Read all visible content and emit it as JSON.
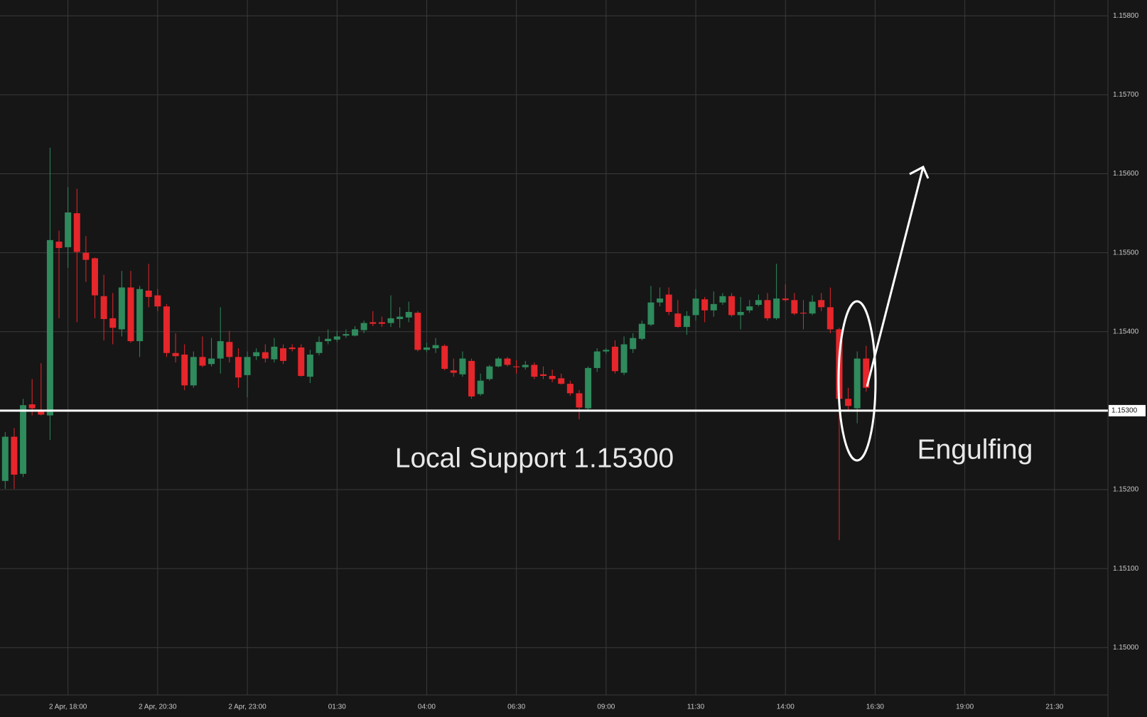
{
  "chart_data": {
    "type": "candlestick",
    "annotations": [
      "Local Support 1.15300",
      "Engulfing"
    ],
    "categories": [
      null,
      null,
      null,
      null,
      null,
      null,
      null,
      "2 Apr, 18:00",
      null,
      null,
      null,
      null,
      null,
      null,
      null,
      null,
      null,
      "2 Apr, 20:30",
      null,
      null,
      null,
      null,
      null,
      null,
      null,
      null,
      null,
      "2 Apr, 23:00",
      null,
      null,
      null,
      null,
      null,
      null,
      null,
      null,
      null,
      "01:30",
      null,
      null,
      null,
      null,
      null,
      null,
      null,
      null,
      null,
      "04:00",
      null,
      null,
      null,
      null,
      null,
      null,
      null,
      null,
      null,
      "06:30",
      null,
      null,
      null,
      null,
      null,
      null,
      null,
      null,
      null,
      "09:00",
      null,
      null,
      null,
      null,
      null,
      null,
      null,
      null,
      null,
      "11:30",
      null,
      null,
      null,
      null,
      null,
      null,
      null,
      null,
      null,
      "14:00",
      null,
      null,
      null,
      null,
      null,
      null,
      null,
      null,
      null,
      "16:30",
      null,
      null,
      null,
      null,
      null,
      null,
      null,
      null,
      null,
      "19:00",
      null,
      null,
      null,
      null,
      null,
      null,
      null,
      null,
      null,
      "21:30",
      null,
      null,
      null,
      null,
      null
    ],
    "open": [
      1.15211,
      1.15267,
      1.1522,
      1.15308,
      1.15301,
      1.15294,
      1.15514,
      1.15507,
      1.1555,
      1.155,
      1.15493,
      1.15445,
      1.15417,
      1.15403,
      1.15456,
      1.15388,
      1.15452,
      1.15446,
      1.15432,
      1.15373,
      1.15371,
      1.15332,
      1.15368,
      1.15359,
      1.15366,
      1.15387,
      1.15368,
      1.15345,
      1.15369,
      1.15374,
      1.15365,
      1.15379,
      1.1538,
      1.1538,
      1.15343,
      1.15373,
      1.15388,
      1.1539,
      1.15395,
      1.15395,
      1.15402,
      1.15412,
      1.15412,
      1.15411,
      1.15416,
      1.15418,
      1.15424,
      1.15377,
      1.15379,
      1.15382,
      1.15351,
      1.15346,
      1.15363,
      1.15321,
      1.1534,
      1.15356,
      1.15366,
      1.15356,
      1.15355,
      1.15358,
      1.15346,
      1.15344,
      1.15341,
      1.15334,
      1.15322,
      1.15303,
      1.15354,
      1.15375,
      1.15381,
      1.15348,
      1.15378,
      1.15391,
      1.15409,
      1.15437,
      1.15447,
      1.15423,
      1.15406,
      1.15421,
      1.15441,
      1.15427,
      1.15437,
      1.15445,
      1.15421,
      1.15427,
      1.15434,
      1.1544,
      1.15417,
      1.15442,
      1.1544,
      1.15424,
      1.15423,
      1.1544,
      1.15431,
      1.15403,
      1.15315,
      1.15303,
      1.15366,
      null,
      null,
      null,
      null,
      null,
      null,
      null,
      null,
      null,
      null,
      null,
      null,
      null,
      null,
      null,
      null,
      null,
      null,
      null,
      null,
      null,
      null,
      null,
      null,
      null,
      null
    ],
    "high": [
      1.15273,
      1.15278,
      1.15315,
      1.1534,
      1.1536,
      1.15633,
      1.15528,
      1.15583,
      1.15581,
      1.15521,
      1.15494,
      1.15472,
      1.15449,
      1.15477,
      1.15477,
      1.15458,
      1.15486,
      1.15454,
      1.15435,
      1.15398,
      1.15384,
      1.15375,
      1.15394,
      1.15392,
      1.15431,
      1.15401,
      1.15379,
      1.15375,
      1.15379,
      1.15384,
      1.15392,
      1.15384,
      1.15384,
      1.15384,
      1.15377,
      1.15394,
      1.15403,
      1.15401,
      1.15403,
      1.15407,
      1.15414,
      1.15426,
      1.15419,
      1.15446,
      1.15431,
      1.15438,
      1.15426,
      1.15386,
      1.15392,
      1.15384,
      1.15366,
      1.15375,
      1.15366,
      1.15347,
      1.15358,
      1.15368,
      1.15368,
      1.15364,
      1.15363,
      1.15361,
      1.15356,
      1.15352,
      1.15347,
      1.15338,
      1.15326,
      1.15356,
      1.15379,
      1.15379,
      1.15389,
      1.15394,
      1.15398,
      1.15414,
      1.15458,
      1.15456,
      1.15456,
      1.1544,
      1.15426,
      1.15454,
      1.15444,
      1.15451,
      1.15449,
      1.15449,
      1.15444,
      1.1544,
      1.15447,
      1.15449,
      1.15486,
      1.1546,
      1.15449,
      1.1544,
      1.15446,
      1.15449,
      1.15456,
      1.15405,
      1.15329,
      1.15375,
      1.15382,
      null,
      null,
      null,
      null,
      null,
      null,
      null,
      null,
      null,
      null,
      null,
      null,
      null,
      null,
      null,
      null,
      null,
      null,
      null,
      null,
      null,
      null,
      null,
      null,
      null,
      null
    ],
    "low": [
      1.15201,
      1.15201,
      1.15216,
      1.15294,
      1.15294,
      1.15263,
      1.15417,
      1.15481,
      1.15412,
      1.15463,
      1.15417,
      1.15389,
      1.15384,
      1.15394,
      1.15386,
      1.15368,
      1.15431,
      1.15426,
      1.15368,
      1.15361,
      1.15326,
      1.15329,
      1.15355,
      1.15356,
      1.15347,
      1.15361,
      1.15329,
      1.15317,
      1.15364,
      1.15361,
      1.15361,
      1.15359,
      1.15375,
      1.15343,
      1.15335,
      1.1537,
      1.15384,
      1.15387,
      1.15392,
      1.15394,
      1.15398,
      1.15407,
      1.15406,
      1.15406,
      1.15405,
      1.15412,
      1.15375,
      1.15374,
      1.15373,
      1.15351,
      1.15343,
      1.15343,
      1.15315,
      1.15319,
      1.15338,
      1.15355,
      1.15356,
      1.15347,
      1.15352,
      1.1534,
      1.1534,
      1.15336,
      1.15333,
      1.15319,
      1.15289,
      1.15301,
      1.15349,
      1.15372,
      1.15347,
      1.15345,
      1.15373,
      1.15389,
      1.15407,
      1.15432,
      1.15421,
      1.15405,
      1.15396,
      1.15414,
      1.15412,
      1.15419,
      1.15434,
      1.15419,
      1.15403,
      1.15424,
      1.15432,
      1.15414,
      1.15415,
      1.15438,
      1.15421,
      1.15403,
      1.15421,
      1.15426,
      1.15398,
      1.15136,
      1.15301,
      1.15284,
      1.15324,
      null,
      null,
      null,
      null,
      null,
      null,
      null,
      null,
      null,
      null,
      null,
      null,
      null,
      null,
      null,
      null,
      null,
      null,
      null,
      null,
      null,
      null,
      null,
      null,
      null,
      null
    ],
    "close": [
      1.15267,
      1.15219,
      1.15307,
      1.15303,
      1.15295,
      1.15516,
      1.15506,
      1.15551,
      1.15501,
      1.15491,
      1.15446,
      1.15416,
      1.15405,
      1.15456,
      1.15388,
      1.15454,
      1.15444,
      1.15432,
      1.15373,
      1.15369,
      1.15332,
      1.15368,
      1.15357,
      1.15366,
      1.15388,
      1.15368,
      1.15342,
      1.15368,
      1.15374,
      1.15366,
      1.15381,
      1.15363,
      1.15378,
      1.15344,
      1.15371,
      1.15387,
      1.15391,
      1.15394,
      1.15397,
      1.15403,
      1.15411,
      1.1541,
      1.1541,
      1.15417,
      1.15419,
      1.15425,
      1.15377,
      1.1538,
      1.15383,
      1.15353,
      1.15348,
      1.15366,
      1.15318,
      1.15338,
      1.15356,
      1.15366,
      1.15358,
      1.15355,
      1.15358,
      1.15343,
      1.15344,
      1.1534,
      1.15334,
      1.15322,
      1.15304,
      1.15354,
      1.15375,
      1.15377,
      1.1535,
      1.15384,
      1.15392,
      1.1541,
      1.15437,
      1.15442,
      1.15425,
      1.15406,
      1.1542,
      1.15442,
      1.15427,
      1.15435,
      1.15445,
      1.15421,
      1.15425,
      1.15432,
      1.1544,
      1.15417,
      1.15442,
      1.1544,
      1.15423,
      1.15423,
      1.15438,
      1.15431,
      1.15403,
      1.15315,
      1.15306,
      1.15366,
      1.15329,
      null,
      null,
      null,
      null,
      null,
      null,
      null,
      null,
      null,
      null,
      null,
      null,
      null,
      null,
      null,
      null,
      null,
      null,
      null,
      null,
      null,
      null,
      null,
      null,
      null,
      null
    ],
    "up_color": "#2f8a5c",
    "down_color": "#e5262b",
    "ylim": [
      1.1494,
      1.1582
    ],
    "yticks": [
      {
        "value": 1.15,
        "label": "1.15000"
      },
      {
        "value": 1.151,
        "label": "1.15100"
      },
      {
        "value": 1.152,
        "label": "1.15200"
      },
      {
        "value": 1.153,
        "label": "1.15300"
      },
      {
        "value": 1.154,
        "label": "1.15400"
      },
      {
        "value": 1.155,
        "label": "1.15500"
      },
      {
        "value": 1.156,
        "label": "1.15600"
      },
      {
        "value": 1.157,
        "label": "1.15700"
      },
      {
        "value": 1.158,
        "label": "1.15800"
      }
    ],
    "support": {
      "value": 1.153,
      "label": "1.15300"
    },
    "grid": true
  }
}
